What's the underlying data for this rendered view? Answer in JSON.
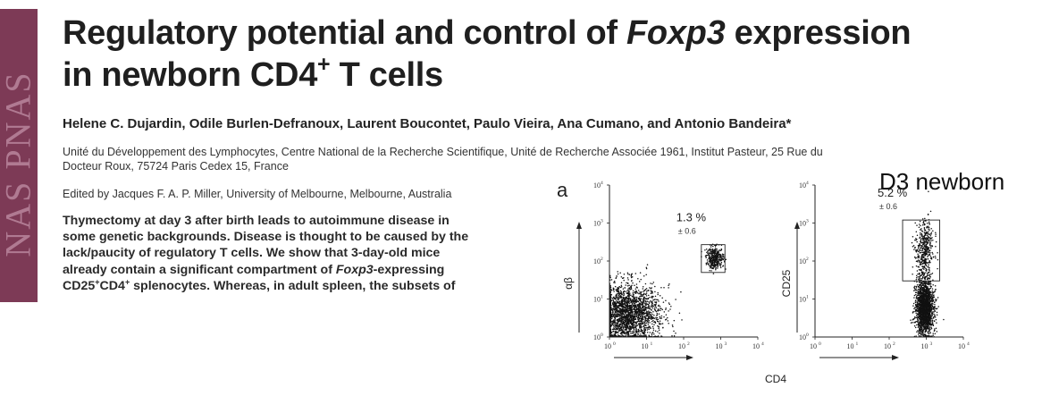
{
  "sidebar": {
    "text": "NAS PNAS"
  },
  "title": {
    "part1": "Regulatory potential and control of ",
    "italic": "Foxp3",
    "part2": " expression",
    "part3": "in newborn CD4",
    "superscript": "+",
    "part4": " T cells"
  },
  "authors": "Helene C. Dujardin, Odile Burlen-Defranoux, Laurent Boucontet, Paulo Vieira, Ana Cumano, and Antonio Bandeira*",
  "affiliation": {
    "line1": "Unité du Développement des Lymphocytes, Centre National de la Recherche Scientifique, Unité de Recherche Associée 1961, Institut Pasteur, 25 Rue du",
    "line2": "Docteur Roux, 75724 Paris Cedex 15, France"
  },
  "edited_by": "Edited by Jacques F. A. P. Miller, University of Melbourne, Melbourne, Australia",
  "abstract": {
    "line1": "Thymectomy at day 3 after birth leads to autoimmune disease in",
    "line2": "some genetic backgrounds. Disease is thought to be caused by the",
    "line3": "lack/paucity of regulatory T cells. We show that 3-day-old mice",
    "line4_pre": "already contain a significant compartment of ",
    "line4_italic": "Foxp3",
    "line4_post": "-expressing",
    "line5_a": "CD25",
    "line5_sup1": "+",
    "line5_b": "CD4",
    "line5_sup2": "+",
    "line5_c": " splenocytes. Whereas, in adult spleen, the subsets of"
  },
  "figure": {
    "panel_letter": "a",
    "title": "D3 newborn",
    "shared_xlabel": "CD4"
  },
  "chart_data": [
    {
      "type": "scatter",
      "xlabel": "CD4",
      "ylabel": "αβ",
      "xscale": "log",
      "yscale": "log",
      "xlim": [
        1,
        10000
      ],
      "ylim": [
        1,
        10000
      ],
      "x_ticks": [
        "10",
        "10",
        "10",
        "10",
        "10"
      ],
      "x_tick_exponents": [
        "0",
        "1",
        "2",
        "3",
        "4"
      ],
      "y_ticks": [
        "10",
        "10",
        "10",
        "10",
        "10"
      ],
      "y_tick_exponents": [
        "0",
        "1",
        "2",
        "3",
        "4"
      ],
      "gate": {
        "x": [
          300,
          1300
        ],
        "y": [
          50,
          270
        ]
      },
      "gate_percent": "1.3 %",
      "gate_sd": "± 0.6",
      "populations": [
        {
          "center": [
            3,
            4
          ],
          "spread": [
            0.45,
            0.4
          ],
          "count": 2200
        },
        {
          "center": [
            700,
            120
          ],
          "spread": [
            0.12,
            0.14
          ],
          "count": 350
        }
      ]
    },
    {
      "type": "scatter",
      "xlabel": "CD4",
      "ylabel": "CD25",
      "xscale": "log",
      "yscale": "log",
      "xlim": [
        1,
        10000
      ],
      "ylim": [
        1,
        10000
      ],
      "x_ticks": [
        "10",
        "10",
        "10",
        "10",
        "10"
      ],
      "x_tick_exponents": [
        "0",
        "1",
        "2",
        "3",
        "4"
      ],
      "y_ticks": [
        "10",
        "10",
        "10",
        "10",
        "10"
      ],
      "y_tick_exponents": [
        "0",
        "1",
        "2",
        "3",
        "4"
      ],
      "gate": {
        "x": [
          230,
          2300
        ],
        "y": [
          30,
          1200
        ]
      },
      "gate_percent": "5.2 %",
      "gate_sd": "± 0.6",
      "populations": [
        {
          "center": [
            900,
            6
          ],
          "spread": [
            0.12,
            0.35
          ],
          "count": 1800
        },
        {
          "center": [
            900,
            200
          ],
          "spread": [
            0.12,
            0.4
          ],
          "count": 450
        }
      ]
    }
  ]
}
